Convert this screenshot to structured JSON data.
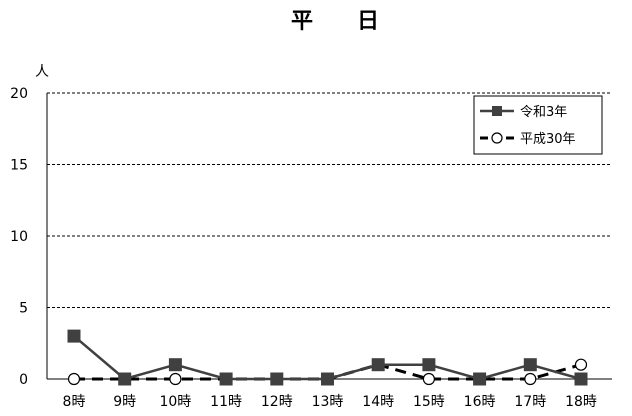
{
  "chart_data": {
    "type": "line",
    "title": "平　　日",
    "xlabel": "",
    "ylabel": "人",
    "categories": [
      "8時",
      "9時",
      "10時",
      "11時",
      "12時",
      "13時",
      "14時",
      "15時",
      "16時",
      "17時",
      "18時"
    ],
    "ylim": [
      0,
      20
    ],
    "yticks": [
      0,
      5,
      10,
      15,
      20
    ],
    "grid": true,
    "legend_position": "top-right",
    "series": [
      {
        "name": "令和3年",
        "values": [
          3,
          0,
          1,
          0,
          0,
          0,
          1,
          1,
          0,
          1,
          0
        ],
        "color": "#404040",
        "line_style": "solid",
        "marker": "filled-square"
      },
      {
        "name": "平成30年",
        "values": [
          0,
          0,
          0,
          0,
          0,
          0,
          1,
          0,
          0,
          0,
          1
        ],
        "color": "#000000",
        "line_style": "dashed",
        "marker": "open-circle"
      }
    ]
  }
}
